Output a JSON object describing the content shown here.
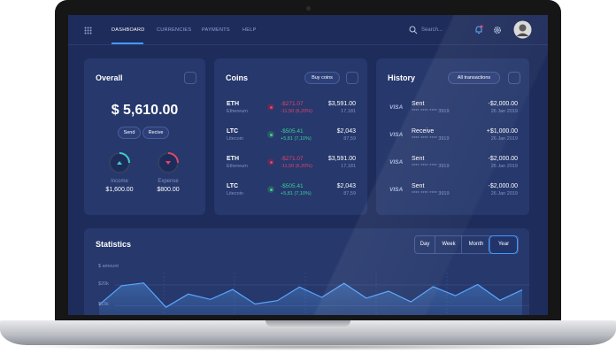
{
  "nav": {
    "items": [
      "DASHBOARD",
      "CURRENCIES",
      "PAYMENTS",
      "HELP"
    ],
    "active": 0,
    "search": "Search..."
  },
  "overall": {
    "title": "Overall",
    "balance": "$ 5,610.00",
    "actions": [
      "Send",
      "Recive"
    ],
    "income": {
      "label": "Income",
      "value": "$1,600.00"
    },
    "expense": {
      "label": "Expense",
      "value": "$800.00"
    }
  },
  "coins": {
    "title": "Coins",
    "button": "Buy coins",
    "rows": [
      {
        "symbol": "ETH",
        "name": "Ethereum",
        "change": "-$271.07",
        "change_pct": "-11,50 (6,20%)",
        "price": "$3,591.00",
        "volume": "17,181",
        "trend": "down"
      },
      {
        "symbol": "LTC",
        "name": "Litecoin",
        "change": "-$505.41",
        "change_pct": "+5,81 (7,10%)",
        "price": "$2,043",
        "volume": "87,59",
        "trend": "up"
      },
      {
        "symbol": "ETH",
        "name": "Ethereum",
        "change": "-$271.07",
        "change_pct": "-11,50 (6,20%)",
        "price": "$3,591.00",
        "volume": "17,181",
        "trend": "down"
      },
      {
        "symbol": "LTC",
        "name": "Litecoin",
        "change": "-$505.41",
        "change_pct": "+5,81 (7,10%)",
        "price": "$2,043",
        "volume": "87,59",
        "trend": "up"
      }
    ]
  },
  "history": {
    "title": "History",
    "button": "All transactions",
    "rows": [
      {
        "card": "VISA",
        "type": "Sent",
        "number": "**** **** **** 3919",
        "amount": "-$2,000.00",
        "date": "26 Jan 2019"
      },
      {
        "card": "VISA",
        "type": "Receive",
        "number": "**** **** **** 3919",
        "amount": "+$1,000.00",
        "date": "26 Jan 2019"
      },
      {
        "card": "VISA",
        "type": "Sent",
        "number": "**** **** **** 3919",
        "amount": "-$2,000.00",
        "date": "26 Jan 2019"
      },
      {
        "card": "VISA",
        "type": "Sent",
        "number": "**** **** **** 3919",
        "amount": "-$2,000.00",
        "date": "26 Jan 2019"
      }
    ]
  },
  "chart_data": {
    "type": "line",
    "title": "Statistics",
    "tabs": [
      "Day",
      "Week",
      "Month",
      "Year"
    ],
    "active_tab": 3,
    "y_label": "$ amount",
    "color": "#5aa7ff",
    "ylim": [
      8000,
      23000
    ],
    "yticks": [
      {
        "value": 20000,
        "label": "$20k"
      },
      {
        "value": 15000,
        "label": "$15k"
      }
    ],
    "values": [
      15200,
      19800,
      20500,
      14600,
      17800,
      16500,
      18900,
      15400,
      16200,
      19500,
      17000,
      20400,
      16800,
      18500,
      15900,
      19600,
      17400,
      20100,
      16300,
      18800
    ]
  }
}
